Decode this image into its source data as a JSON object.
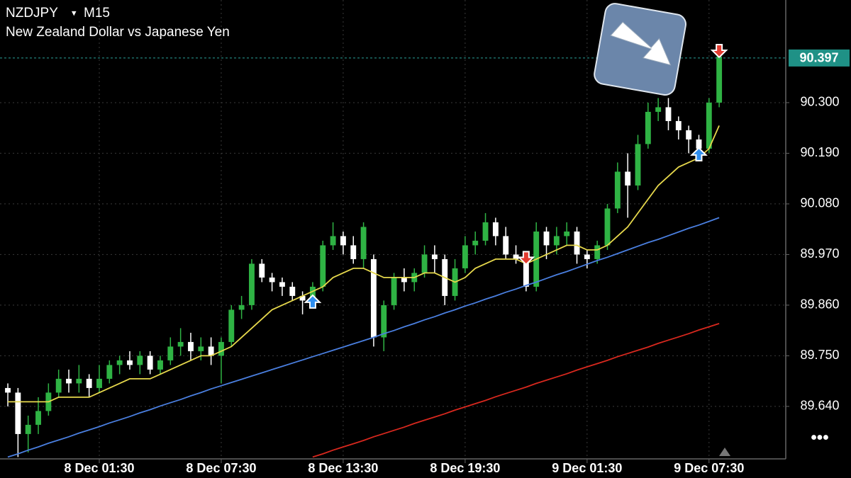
{
  "header": {
    "symbol": "NZDJPY",
    "timeframe": "M15",
    "description": "New Zealand Dollar vs Japanese Yen"
  },
  "chart_data": {
    "type": "candlestick",
    "open": [
      89.68,
      89.67,
      89.58,
      89.6,
      89.63,
      89.67,
      89.7,
      89.69,
      89.7,
      89.68,
      89.7,
      89.73,
      89.74,
      89.73,
      89.75,
      89.72,
      89.74,
      89.77,
      89.78,
      89.76,
      89.77,
      89.75,
      89.78,
      89.85,
      89.86,
      89.95,
      89.92,
      89.91,
      89.9,
      89.88,
      89.87,
      89.9,
      89.99,
      90.01,
      89.99,
      89.96,
      89.96,
      89.79,
      89.86,
      89.92,
      89.91,
      89.93,
      89.97,
      89.96,
      89.88,
      89.94,
      89.99,
      90.0,
      90.04,
      90.01,
      89.97,
      89.96,
      89.9,
      90.02,
      89.99,
      90.01,
      90.02,
      89.97,
      89.96,
      89.99,
      90.07,
      90.15,
      90.12,
      90.21,
      90.28,
      90.29,
      90.26,
      90.24,
      90.22,
      90.2,
      90.3
    ],
    "high": [
      89.69,
      89.68,
      89.62,
      89.66,
      89.69,
      89.72,
      89.72,
      89.73,
      89.71,
      89.73,
      89.74,
      89.75,
      89.76,
      89.76,
      89.76,
      89.75,
      89.79,
      89.81,
      89.8,
      89.79,
      89.79,
      89.79,
      89.86,
      89.88,
      89.96,
      89.96,
      89.93,
      89.92,
      89.91,
      89.89,
      89.91,
      90.0,
      90.04,
      90.02,
      90.01,
      90.04,
      89.97,
      89.87,
      89.93,
      89.94,
      89.94,
      89.99,
      89.99,
      89.97,
      89.96,
      90.01,
      90.02,
      90.06,
      90.05,
      90.03,
      89.99,
      89.97,
      90.04,
      90.03,
      90.03,
      90.04,
      90.03,
      89.98,
      90.0,
      90.08,
      90.17,
      90.19,
      90.23,
      90.3,
      90.31,
      90.31,
      90.27,
      90.25,
      90.23,
      90.31,
      90.42
    ],
    "low": [
      89.64,
      89.53,
      89.54,
      89.58,
      89.62,
      89.66,
      89.67,
      89.67,
      89.66,
      89.67,
      89.69,
      89.71,
      89.72,
      89.71,
      89.71,
      89.71,
      89.73,
      89.75,
      89.74,
      89.74,
      89.73,
      89.69,
      89.77,
      89.83,
      89.85,
      89.91,
      89.89,
      89.88,
      89.87,
      89.84,
      89.86,
      89.89,
      89.98,
      89.97,
      89.95,
      89.94,
      89.77,
      89.76,
      89.85,
      89.89,
      89.89,
      89.92,
      89.93,
      89.86,
      89.87,
      89.93,
      89.97,
      89.99,
      89.99,
      89.96,
      89.95,
      89.89,
      89.89,
      89.96,
      89.97,
      89.99,
      89.95,
      89.94,
      89.95,
      89.98,
      90.06,
      90.05,
      90.11,
      90.2,
      90.26,
      90.24,
      90.22,
      90.19,
      90.18,
      90.19,
      90.29
    ],
    "close": [
      89.67,
      89.58,
      89.6,
      89.63,
      89.67,
      89.7,
      89.69,
      89.7,
      89.68,
      89.7,
      89.73,
      89.74,
      89.73,
      89.75,
      89.72,
      89.74,
      89.77,
      89.78,
      89.76,
      89.77,
      89.75,
      89.78,
      89.85,
      89.86,
      89.95,
      89.92,
      89.91,
      89.9,
      89.88,
      89.87,
      89.9,
      89.99,
      90.01,
      89.99,
      89.96,
      90.03,
      89.79,
      89.86,
      89.92,
      89.91,
      89.93,
      89.97,
      89.96,
      89.88,
      89.94,
      89.99,
      90.0,
      90.04,
      90.01,
      89.97,
      89.96,
      89.9,
      90.02,
      89.99,
      90.01,
      90.02,
      89.97,
      89.96,
      89.99,
      90.07,
      90.15,
      90.12,
      90.21,
      90.28,
      90.29,
      90.26,
      90.24,
      90.22,
      90.2,
      90.3,
      90.4
    ],
    "up_color": "#2fb344",
    "down_color": "#ffffff",
    "series": [
      {
        "color": "#e6d84c",
        "values": [
          89.65,
          89.65,
          89.65,
          89.65,
          89.65,
          89.66,
          89.66,
          89.66,
          89.66,
          89.67,
          89.68,
          89.69,
          89.7,
          89.7,
          89.7,
          89.71,
          89.72,
          89.73,
          89.74,
          89.75,
          89.75,
          89.76,
          89.77,
          89.79,
          89.81,
          89.83,
          89.85,
          89.86,
          89.87,
          89.88,
          89.89,
          89.9,
          89.92,
          89.93,
          89.94,
          89.94,
          89.93,
          89.92,
          89.92,
          89.92,
          89.92,
          89.93,
          89.93,
          89.92,
          89.91,
          89.92,
          89.94,
          89.95,
          89.96,
          89.96,
          89.96,
          89.95,
          89.96,
          89.97,
          89.98,
          89.99,
          89.99,
          89.98,
          89.98,
          89.99,
          90.01,
          90.03,
          90.06,
          90.09,
          90.12,
          90.14,
          90.16,
          90.17,
          90.18,
          90.2,
          90.25
        ]
      },
      {
        "color": "#4a7fe0",
        "values": [
          89.53,
          89.537,
          89.545,
          89.552,
          89.56,
          89.567,
          89.574,
          89.582,
          89.589,
          89.596,
          89.604,
          89.611,
          89.618,
          89.626,
          89.633,
          89.641,
          89.648,
          89.655,
          89.663,
          89.67,
          89.678,
          89.685,
          89.692,
          89.699,
          89.706,
          89.713,
          89.72,
          89.727,
          89.734,
          89.741,
          89.748,
          89.755,
          89.762,
          89.769,
          89.776,
          89.783,
          89.79,
          89.798,
          89.805,
          89.813,
          89.82,
          89.828,
          89.835,
          89.843,
          89.85,
          89.858,
          89.865,
          89.873,
          89.88,
          89.888,
          89.895,
          89.903,
          89.91,
          89.918,
          89.926,
          89.933,
          89.941,
          89.949,
          89.957,
          89.964,
          89.972,
          89.98,
          89.988,
          89.996,
          90.003,
          90.011,
          90.019,
          90.027,
          90.034,
          90.042,
          90.05
        ]
      },
      {
        "color": "#d8281e",
        "values": [
          null,
          null,
          null,
          null,
          null,
          null,
          null,
          null,
          null,
          null,
          null,
          null,
          null,
          null,
          null,
          null,
          null,
          null,
          null,
          null,
          null,
          null,
          null,
          null,
          null,
          null,
          null,
          null,
          null,
          null,
          89.53,
          89.537,
          89.545,
          89.552,
          89.559,
          89.566,
          89.574,
          89.581,
          89.588,
          89.595,
          89.603,
          89.61,
          89.617,
          89.624,
          89.632,
          89.639,
          89.646,
          89.653,
          89.661,
          89.668,
          89.675,
          89.682,
          89.69,
          89.697,
          89.704,
          89.711,
          89.719,
          89.726,
          89.733,
          89.74,
          89.748,
          89.755,
          89.762,
          89.769,
          89.777,
          89.784,
          89.791,
          89.798,
          89.806,
          89.813,
          89.82
        ]
      }
    ],
    "current_price": 90.397,
    "ylim": [
      89.526,
      90.523
    ],
    "yticks": [
      {
        "value": 90.3,
        "label": "90.300"
      },
      {
        "value": 90.19,
        "label": "90.190"
      },
      {
        "value": 90.08,
        "label": "90.080"
      },
      {
        "value": 89.97,
        "label": "89.970"
      },
      {
        "value": 89.86,
        "label": "89.860"
      },
      {
        "value": 89.75,
        "label": "89.750"
      },
      {
        "value": 89.64,
        "label": "89.640"
      }
    ],
    "xlim": [
      -0.77,
      76.55
    ],
    "xticks": [
      {
        "value": 9,
        "label": "8 Dec 01:30"
      },
      {
        "value": 21,
        "label": "8 Dec 07:30"
      },
      {
        "value": 33,
        "label": "8 Dec 13:30"
      },
      {
        "value": 45,
        "label": "8 Dec 19:30"
      },
      {
        "value": 57,
        "label": "9 Dec 01:30"
      },
      {
        "value": 69,
        "label": "9 Dec 07:30"
      }
    ],
    "grid": true
  }
}
